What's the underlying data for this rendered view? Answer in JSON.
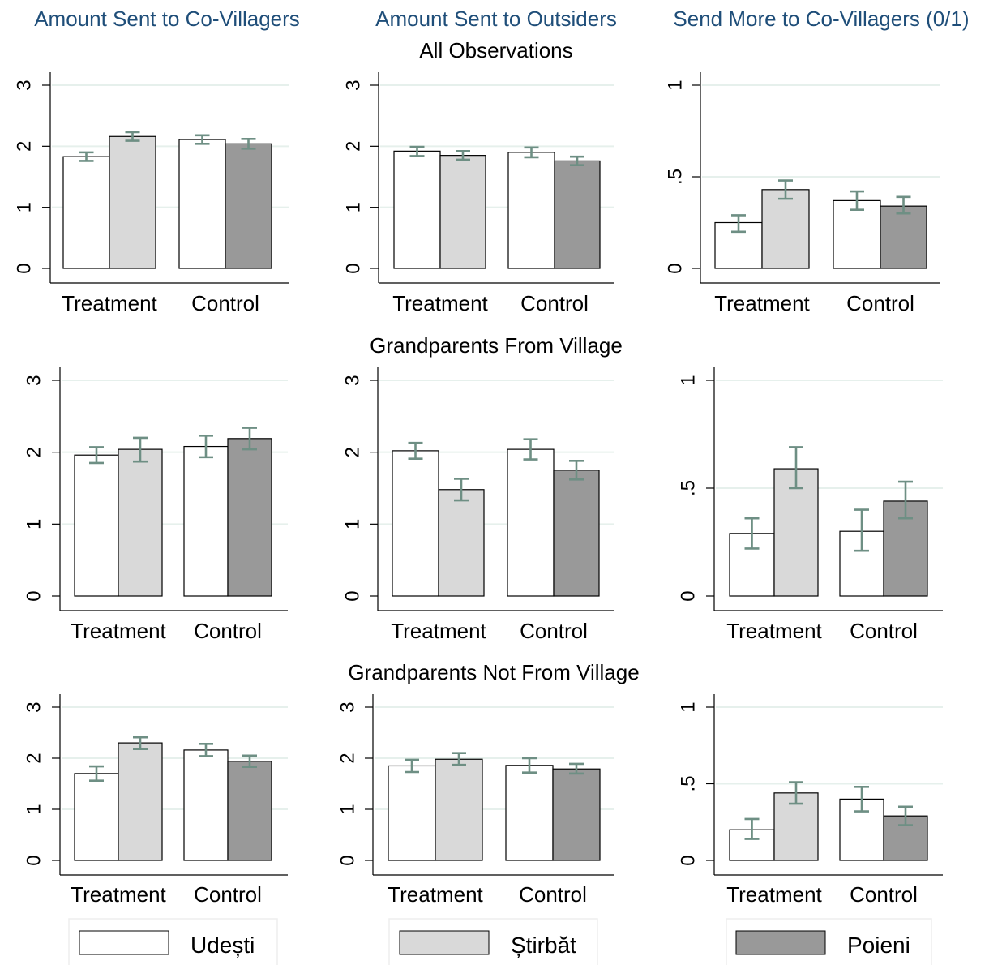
{
  "column_titles": [
    "Amount Sent to Co-Villagers",
    "Amount Sent to Outsiders",
    "Send More to Co-Villagers (0/1)"
  ],
  "row_titles": [
    "All Observations",
    "Grandparents From Village",
    "Grandparents Not From Village"
  ],
  "colors": {
    "Udești": "#ffffff",
    "Știrbăt": "#d9d9d9",
    "Poieni": "#999999",
    "error_bar": "#6e8f84",
    "title": "#1f4e79",
    "grid": "#e6f0ec"
  },
  "legend": [
    {
      "name": "Udești",
      "color": "#ffffff"
    },
    {
      "name": "Știrbăt",
      "color": "#d9d9d9"
    },
    {
      "name": "Poieni",
      "color": "#999999"
    }
  ],
  "chart_data": [
    {
      "type": "bar",
      "row": "All Observations",
      "column": "Amount Sent to Co-Villagers",
      "categories": [
        "Treatment",
        "Control"
      ],
      "ylim": [
        0,
        3
      ],
      "yticks": [
        0,
        1,
        2,
        3
      ],
      "ytick_labels": [
        "0",
        "1",
        "2",
        "3"
      ],
      "series": [
        {
          "name": "Udești",
          "values": [
            1.83,
            2.11
          ],
          "err_low": [
            1.76,
            2.04
          ],
          "err_high": [
            1.9,
            2.18
          ]
        },
        {
          "name": "Știrbăt",
          "values": [
            2.16,
            null
          ],
          "err_low": [
            2.09,
            null
          ],
          "err_high": [
            2.23,
            null
          ]
        },
        {
          "name": "Poieni",
          "values": [
            null,
            2.04
          ],
          "err_low": [
            null,
            1.96
          ],
          "err_high": [
            null,
            2.12
          ]
        }
      ]
    },
    {
      "type": "bar",
      "row": "All Observations",
      "column": "Amount Sent to Outsiders",
      "categories": [
        "Treatment",
        "Control"
      ],
      "ylim": [
        0,
        3
      ],
      "yticks": [
        0,
        1,
        2,
        3
      ],
      "ytick_labels": [
        "0",
        "1",
        "2",
        "3"
      ],
      "series": [
        {
          "name": "Udești",
          "values": [
            1.92,
            1.9
          ],
          "err_low": [
            1.84,
            1.82
          ],
          "err_high": [
            1.99,
            1.98
          ]
        },
        {
          "name": "Știrbăt",
          "values": [
            1.85,
            null
          ],
          "err_low": [
            1.78,
            null
          ],
          "err_high": [
            1.92,
            null
          ]
        },
        {
          "name": "Poieni",
          "values": [
            null,
            1.76
          ],
          "err_low": [
            null,
            1.69
          ],
          "err_high": [
            null,
            1.83
          ]
        }
      ]
    },
    {
      "type": "bar",
      "row": "All Observations",
      "column": "Send More to Co-Villagers (0/1)",
      "categories": [
        "Treatment",
        "Control"
      ],
      "ylim": [
        0,
        1
      ],
      "yticks": [
        0,
        0.5,
        1
      ],
      "ytick_labels": [
        "0",
        ".5",
        "1"
      ],
      "series": [
        {
          "name": "Udești",
          "values": [
            0.25,
            0.37
          ],
          "err_low": [
            0.2,
            0.32
          ],
          "err_high": [
            0.29,
            0.42
          ]
        },
        {
          "name": "Știrbăt",
          "values": [
            0.43,
            null
          ],
          "err_low": [
            0.38,
            null
          ],
          "err_high": [
            0.48,
            null
          ]
        },
        {
          "name": "Poieni",
          "values": [
            null,
            0.34
          ],
          "err_low": [
            null,
            0.3
          ],
          "err_high": [
            null,
            0.39
          ]
        }
      ]
    },
    {
      "type": "bar",
      "row": "Grandparents From Village",
      "column": "Amount Sent to Co-Villagers",
      "categories": [
        "Treatment",
        "Control"
      ],
      "ylim": [
        0,
        3
      ],
      "yticks": [
        0,
        1,
        2,
        3
      ],
      "ytick_labels": [
        "0",
        "1",
        "2",
        "3"
      ],
      "series": [
        {
          "name": "Udești",
          "values": [
            1.96,
            2.08
          ],
          "err_low": [
            1.85,
            1.93
          ],
          "err_high": [
            2.07,
            2.23
          ]
        },
        {
          "name": "Știrbăt",
          "values": [
            2.04,
            null
          ],
          "err_low": [
            1.87,
            null
          ],
          "err_high": [
            2.2,
            null
          ]
        },
        {
          "name": "Poieni",
          "values": [
            null,
            2.19
          ],
          "err_low": [
            null,
            2.04
          ],
          "err_high": [
            null,
            2.34
          ]
        }
      ]
    },
    {
      "type": "bar",
      "row": "Grandparents From Village",
      "column": "Amount Sent to Outsiders",
      "categories": [
        "Treatment",
        "Control"
      ],
      "ylim": [
        0,
        3
      ],
      "yticks": [
        0,
        1,
        2,
        3
      ],
      "ytick_labels": [
        "0",
        "1",
        "2",
        "3"
      ],
      "series": [
        {
          "name": "Udești",
          "values": [
            2.02,
            2.04
          ],
          "err_low": [
            1.91,
            1.9
          ],
          "err_high": [
            2.13,
            2.18
          ]
        },
        {
          "name": "Știrbăt",
          "values": [
            1.48,
            null
          ],
          "err_low": [
            1.33,
            null
          ],
          "err_high": [
            1.63,
            null
          ]
        },
        {
          "name": "Poieni",
          "values": [
            null,
            1.75
          ],
          "err_low": [
            null,
            1.62
          ],
          "err_high": [
            null,
            1.88
          ]
        }
      ]
    },
    {
      "type": "bar",
      "row": "Grandparents From Village",
      "column": "Send More to Co-Villagers (0/1)",
      "categories": [
        "Treatment",
        "Control"
      ],
      "ylim": [
        0,
        1
      ],
      "yticks": [
        0,
        0.5,
        1
      ],
      "ytick_labels": [
        "0",
        ".5",
        "1"
      ],
      "series": [
        {
          "name": "Udești",
          "values": [
            0.29,
            0.3
          ],
          "err_low": [
            0.22,
            0.21
          ],
          "err_high": [
            0.36,
            0.4
          ]
        },
        {
          "name": "Știrbăt",
          "values": [
            0.59,
            null
          ],
          "err_low": [
            0.5,
            null
          ],
          "err_high": [
            0.69,
            null
          ]
        },
        {
          "name": "Poieni",
          "values": [
            null,
            0.44
          ],
          "err_low": [
            null,
            0.36
          ],
          "err_high": [
            null,
            0.53
          ]
        }
      ]
    },
    {
      "type": "bar",
      "row": "Grandparents Not From Village",
      "column": "Amount Sent to Co-Villagers",
      "categories": [
        "Treatment",
        "Control"
      ],
      "ylim": [
        0,
        3
      ],
      "yticks": [
        0,
        1,
        2,
        3
      ],
      "ytick_labels": [
        "0",
        "1",
        "2",
        "3"
      ],
      "series": [
        {
          "name": "Udești",
          "values": [
            1.7,
            2.16
          ],
          "err_low": [
            1.56,
            2.04
          ],
          "err_high": [
            1.84,
            2.28
          ]
        },
        {
          "name": "Știrbăt",
          "values": [
            2.3,
            null
          ],
          "err_low": [
            2.18,
            null
          ],
          "err_high": [
            2.41,
            null
          ]
        },
        {
          "name": "Poieni",
          "values": [
            null,
            1.94
          ],
          "err_low": [
            null,
            1.83
          ],
          "err_high": [
            null,
            2.05
          ]
        }
      ]
    },
    {
      "type": "bar",
      "row": "Grandparents Not From Village",
      "column": "Amount Sent to Outsiders",
      "categories": [
        "Treatment",
        "Control"
      ],
      "ylim": [
        0,
        3
      ],
      "yticks": [
        0,
        1,
        2,
        3
      ],
      "ytick_labels": [
        "0",
        "1",
        "2",
        "3"
      ],
      "series": [
        {
          "name": "Udești",
          "values": [
            1.85,
            1.86
          ],
          "err_low": [
            1.73,
            1.72
          ],
          "err_high": [
            1.97,
            2.0
          ]
        },
        {
          "name": "Știrbăt",
          "values": [
            1.98,
            null
          ],
          "err_low": [
            1.87,
            null
          ],
          "err_high": [
            2.1,
            null
          ]
        },
        {
          "name": "Poieni",
          "values": [
            null,
            1.79
          ],
          "err_low": [
            null,
            1.7
          ],
          "err_high": [
            null,
            1.89
          ]
        }
      ]
    },
    {
      "type": "bar",
      "row": "Grandparents Not From Village",
      "column": "Send More to Co-Villagers (0/1)",
      "categories": [
        "Treatment",
        "Control"
      ],
      "ylim": [
        0,
        1
      ],
      "yticks": [
        0,
        0.5,
        1
      ],
      "ytick_labels": [
        "0",
        ".5",
        "1"
      ],
      "series": [
        {
          "name": "Udești",
          "values": [
            0.2,
            0.4
          ],
          "err_low": [
            0.14,
            0.32
          ],
          "err_high": [
            0.27,
            0.48
          ]
        },
        {
          "name": "Știrbăt",
          "values": [
            0.44,
            null
          ],
          "err_low": [
            0.37,
            null
          ],
          "err_high": [
            0.51,
            null
          ]
        },
        {
          "name": "Poieni",
          "values": [
            null,
            0.29
          ],
          "err_low": [
            null,
            0.23
          ],
          "err_high": [
            null,
            0.35
          ]
        }
      ]
    }
  ]
}
